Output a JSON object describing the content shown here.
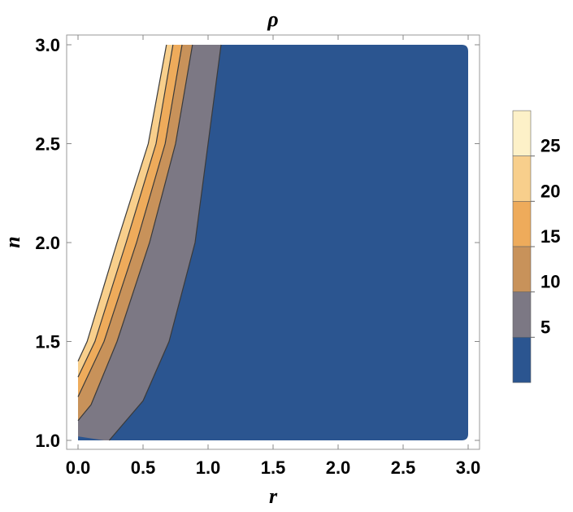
{
  "chart_data": {
    "type": "contour",
    "title": "ρ",
    "xlabel": "r",
    "ylabel": "n",
    "xlim": [
      0,
      3
    ],
    "ylim": [
      1,
      3
    ],
    "x_ticks": [
      "0.0",
      "0.5",
      "1.0",
      "1.5",
      "2.0",
      "2.5",
      "3.0"
    ],
    "y_ticks": [
      "1.0",
      "1.5",
      "2.0",
      "2.5",
      "3.0"
    ],
    "legend": {
      "position": "right",
      "labels": [
        "5",
        "10",
        "15",
        "20",
        "25"
      ]
    },
    "levels": [
      {
        "range": [
          0,
          5
        ],
        "color": "#2b5590"
      },
      {
        "range": [
          5,
          10
        ],
        "color": "#7c7884"
      },
      {
        "range": [
          10,
          15
        ],
        "color": "#c8925a"
      },
      {
        "range": [
          15,
          20
        ],
        "color": "#eeab5b"
      },
      {
        "range": [
          20,
          25
        ],
        "color": "#f8cf8c"
      },
      {
        "range": [
          25,
          30
        ],
        "color": "#fdf1c8"
      }
    ],
    "contours": [
      {
        "level": 5,
        "points": [
          [
            0.24,
            1.0
          ],
          [
            0.5,
            1.2
          ],
          [
            0.7,
            1.5
          ],
          [
            0.9,
            2.0
          ],
          [
            1.0,
            2.5
          ],
          [
            1.1,
            3.0
          ]
        ]
      },
      {
        "level": 10,
        "points": [
          [
            0.0,
            1.1
          ],
          [
            0.1,
            1.18
          ],
          [
            0.3,
            1.5
          ],
          [
            0.55,
            2.0
          ],
          [
            0.75,
            2.5
          ],
          [
            0.88,
            3.0
          ]
        ]
      },
      {
        "level": 15,
        "points": [
          [
            0.0,
            1.22
          ],
          [
            0.2,
            1.5
          ],
          [
            0.45,
            2.0
          ],
          [
            0.67,
            2.5
          ],
          [
            0.8,
            3.0
          ]
        ]
      },
      {
        "level": 20,
        "points": [
          [
            0.0,
            1.32
          ],
          [
            0.13,
            1.5
          ],
          [
            0.37,
            2.0
          ],
          [
            0.6,
            2.5
          ],
          [
            0.73,
            3.0
          ]
        ]
      },
      {
        "level": 25,
        "points": [
          [
            0.0,
            1.4
          ],
          [
            0.07,
            1.5
          ],
          [
            0.3,
            2.0
          ],
          [
            0.54,
            2.5
          ],
          [
            0.68,
            3.0
          ]
        ]
      }
    ]
  }
}
